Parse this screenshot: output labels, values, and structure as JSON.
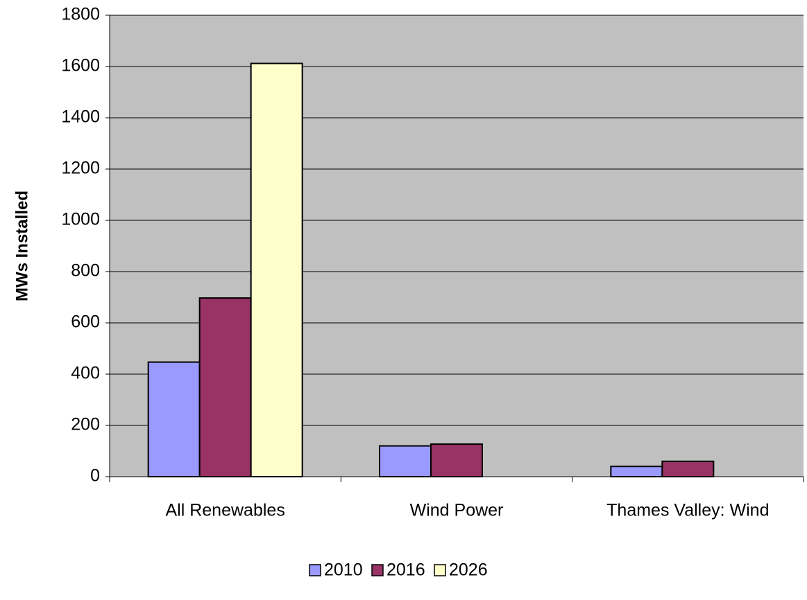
{
  "chart_data": {
    "type": "bar",
    "y_label": "MWs Installed",
    "categories": [
      "All Renewables",
      "Wind Power",
      "Thames Valley: Wind"
    ],
    "series": [
      {
        "name": "2010",
        "color": "#9999ff",
        "values": [
          447,
          120,
          40
        ]
      },
      {
        "name": "2016",
        "color": "#993366",
        "values": [
          697,
          127,
          60
        ]
      },
      {
        "name": "2026",
        "color": "#ffffcc",
        "values": [
          1612,
          null,
          null
        ]
      }
    ],
    "ylim": [
      0,
      1800
    ],
    "yticks": [
      0,
      200,
      400,
      600,
      800,
      1000,
      1200,
      1400,
      1600,
      1800
    ],
    "grid": true,
    "plot_background": "#c0c0c0",
    "legend": "bottom"
  }
}
